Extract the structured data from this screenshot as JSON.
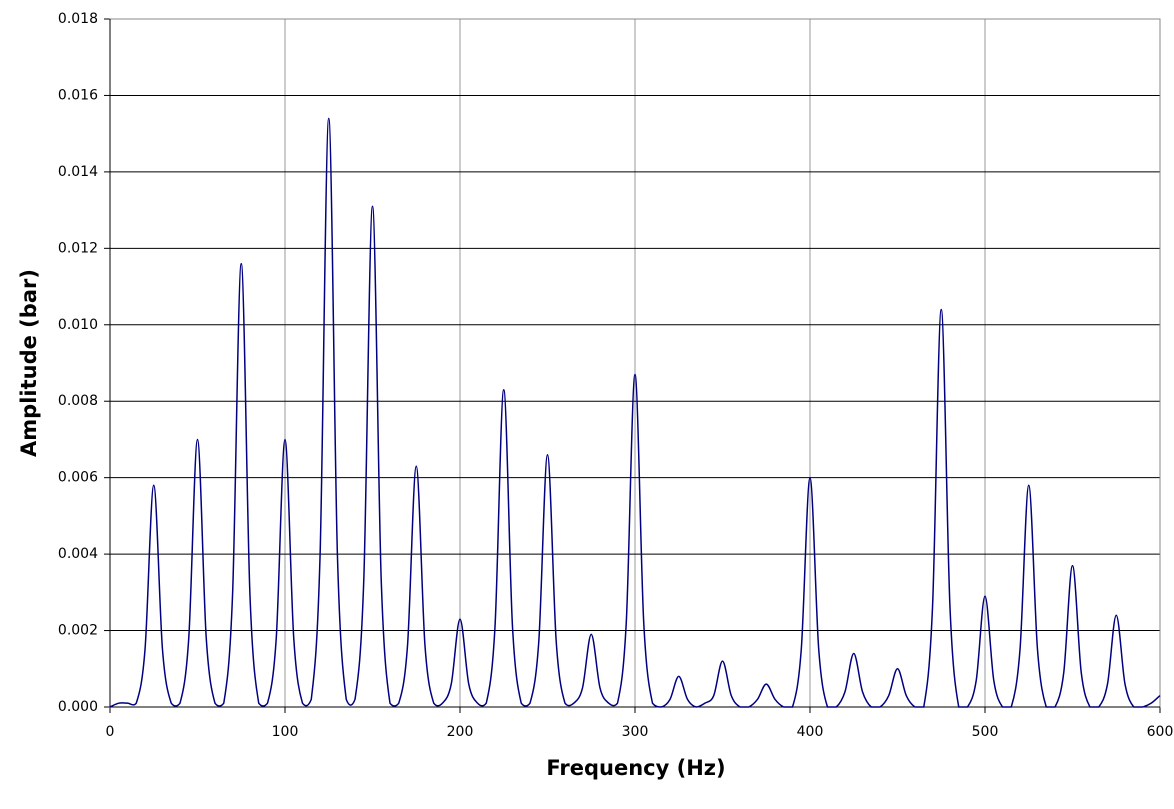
{
  "chart_data": {
    "type": "line",
    "x_label": "Frequency (Hz)",
    "y_label": "Amplitude (bar)",
    "x": [
      0,
      5,
      10,
      15,
      20,
      25,
      30,
      35,
      40,
      45,
      50,
      55,
      60,
      65,
      70,
      75,
      80,
      85,
      90,
      95,
      100,
      105,
      110,
      115,
      120,
      125,
      130,
      135,
      140,
      145,
      150,
      155,
      160,
      165,
      170,
      175,
      180,
      185,
      190,
      195,
      200,
      205,
      210,
      215,
      220,
      225,
      230,
      235,
      240,
      245,
      250,
      255,
      260,
      265,
      270,
      275,
      280,
      285,
      290,
      295,
      300,
      305,
      310,
      315,
      320,
      325,
      330,
      335,
      340,
      345,
      350,
      355,
      360,
      365,
      370,
      375,
      380,
      385,
      390,
      395,
      400,
      405,
      410,
      415,
      420,
      425,
      430,
      435,
      440,
      445,
      450,
      455,
      460,
      465,
      470,
      475,
      480,
      485,
      490,
      495,
      500,
      505,
      510,
      515,
      520,
      525,
      530,
      535,
      540,
      545,
      550,
      555,
      560,
      565,
      570,
      575,
      580,
      585,
      590,
      595,
      600
    ],
    "series": [
      {
        "color": "#000080",
        "values": [
          0,
          0.0001,
          0.0001,
          0.0001,
          0.0015,
          0.0058,
          0.0015,
          0.0001,
          0.0001,
          0.0018,
          0.007,
          0.0018,
          0.0001,
          0.0001,
          0.0029,
          0.0116,
          0.0029,
          0.0001,
          0.0001,
          0.0018,
          0.007,
          0.0018,
          0.0001,
          0.0002,
          0.0039,
          0.0154,
          0.0039,
          0.0002,
          0.0002,
          0.0033,
          0.0131,
          0.0033,
          0.0001,
          0.0001,
          0.0016,
          0.0063,
          0.0016,
          0.0001,
          0.0001,
          0.0006,
          0.0023,
          0.0006,
          0.0001,
          0.0001,
          0.0021,
          0.0083,
          0.0021,
          0.0001,
          0.0001,
          0.0017,
          0.0066,
          0.0017,
          0.0001,
          0.0001,
          0.0005,
          0.0019,
          0.0005,
          0.0001,
          0.0001,
          0.0022,
          0.0087,
          0.0022,
          0.0001,
          0,
          0.0002,
          0.0008,
          0.0002,
          0,
          0.0001,
          0.0003,
          0.0012,
          0.0003,
          0,
          0,
          0.0002,
          0.0006,
          0.0002,
          0,
          0,
          0.0015,
          0.006,
          0.0015,
          0,
          0,
          0.0004,
          0.0014,
          0.0004,
          0,
          0,
          0.0003,
          0.001,
          0.0003,
          0,
          0,
          0.0026,
          0.0104,
          0.0026,
          0,
          0,
          0.0007,
          0.0029,
          0.0007,
          0,
          0,
          0.0015,
          0.0058,
          0.0015,
          0,
          0,
          0.0009,
          0.0037,
          0.0009,
          0,
          0,
          0.0006,
          0.0024,
          0.0006,
          0,
          0,
          0.0001,
          0.0003
        ]
      }
    ],
    "xlim": [
      0,
      600
    ],
    "xticks": [
      0,
      100,
      200,
      300,
      400,
      500,
      600
    ],
    "ylim": [
      0,
      0.018
    ],
    "yticks": [
      {
        "value": 0,
        "label": "0.000"
      },
      {
        "value": 0.002,
        "label": "0.002"
      },
      {
        "value": 0.004,
        "label": "0.004"
      },
      {
        "value": 0.006,
        "label": "0.006"
      },
      {
        "value": 0.008,
        "label": "0.008"
      },
      {
        "value": 0.01,
        "label": "0.010"
      },
      {
        "value": 0.012,
        "label": "0.012"
      },
      {
        "value": 0.014,
        "label": "0.014"
      },
      {
        "value": 0.016,
        "label": "0.016"
      },
      {
        "value": 0.018,
        "label": "0.018"
      }
    ],
    "grid": true
  }
}
